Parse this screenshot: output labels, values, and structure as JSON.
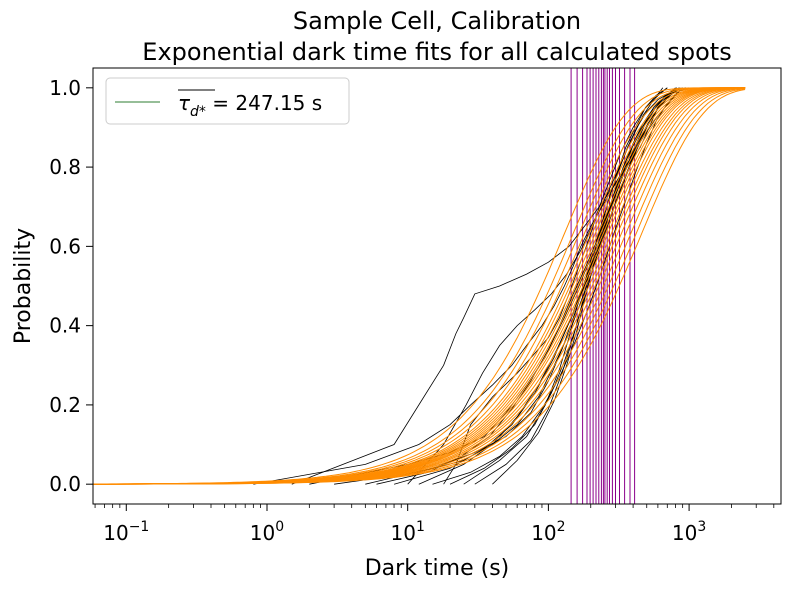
{
  "chart_data": {
    "type": "line",
    "title": "Sample Cell, Calibration",
    "subtitle": "Exponential dark time fits for all calculated spots",
    "xlabel": "Dark time (s)",
    "ylabel": "Probability",
    "x_scale": "log",
    "xlim": [
      0.058,
      4500
    ],
    "ylim": [
      -0.05,
      1.05
    ],
    "x_ticks": [
      {
        "value": 0.1,
        "base": "10",
        "exp": "−1"
      },
      {
        "value": 1,
        "base": "10",
        "exp": "0"
      },
      {
        "value": 10,
        "base": "10",
        "exp": "1"
      },
      {
        "value": 100,
        "base": "10",
        "exp": "2"
      },
      {
        "value": 1000,
        "base": "10",
        "exp": "3"
      }
    ],
    "y_ticks": [
      "0.0",
      "0.2",
      "0.4",
      "0.6",
      "0.8",
      "1.0"
    ],
    "grid": false,
    "legend": {
      "placement": "top-left",
      "label_prefix": "τ",
      "label_subscript": "d*",
      "label_suffix": " = 247.15 s",
      "color": "#2e7d32"
    },
    "colors": {
      "empirical": "#000000",
      "fit": "#ff8c00",
      "tau_lines": "#8b008b"
    },
    "tau_d_values": [
      145,
      160,
      175,
      188,
      198,
      208,
      218,
      228,
      238,
      246,
      252,
      262,
      272,
      285,
      300,
      320,
      348,
      380,
      410
    ],
    "fit_taus": [
      130,
      150,
      165,
      180,
      195,
      205,
      215,
      225,
      235,
      245,
      255,
      265,
      280,
      295,
      310,
      330,
      355,
      385,
      420,
      460
    ],
    "empirical_series": [
      {
        "x": [
          0.8,
          5,
          12,
          20,
          28,
          40,
          55,
          70,
          90,
          110,
          130,
          150,
          170,
          200,
          240,
          290,
          360,
          450,
          600,
          800
        ],
        "y": [
          0,
          0.05,
          0.1,
          0.15,
          0.2,
          0.25,
          0.3,
          0.35,
          0.4,
          0.45,
          0.5,
          0.55,
          0.6,
          0.65,
          0.7,
          0.75,
          0.8,
          0.85,
          0.95,
          1.0
        ]
      },
      {
        "x": [
          1.5,
          8,
          18,
          22,
          25,
          30,
          45,
          70,
          100,
          140,
          180,
          230,
          300,
          380,
          480,
          600,
          750,
          900
        ],
        "y": [
          0,
          0.1,
          0.3,
          0.38,
          0.42,
          0.48,
          0.5,
          0.53,
          0.56,
          0.6,
          0.65,
          0.7,
          0.76,
          0.82,
          0.88,
          0.93,
          0.97,
          1.0
        ]
      },
      {
        "x": [
          2,
          10,
          20,
          35,
          50,
          70,
          95,
          120,
          150,
          185,
          225,
          270,
          330,
          400,
          480,
          580,
          700,
          900
        ],
        "y": [
          0,
          0.05,
          0.08,
          0.12,
          0.18,
          0.25,
          0.32,
          0.4,
          0.48,
          0.55,
          0.62,
          0.7,
          0.77,
          0.83,
          0.89,
          0.94,
          0.98,
          1.0
        ]
      },
      {
        "x": [
          3,
          12,
          25,
          40,
          60,
          85,
          110,
          140,
          170,
          205,
          245,
          295,
          350,
          420,
          500,
          600,
          720,
          850
        ],
        "y": [
          0,
          0.03,
          0.06,
          0.1,
          0.15,
          0.22,
          0.3,
          0.38,
          0.46,
          0.54,
          0.62,
          0.7,
          0.77,
          0.84,
          0.9,
          0.95,
          0.98,
          1.0
        ]
      },
      {
        "x": [
          5,
          15,
          30,
          50,
          75,
          100,
          125,
          150,
          180,
          215,
          250,
          300,
          360,
          430,
          520,
          640,
          800
        ],
        "y": [
          0,
          0.04,
          0.08,
          0.12,
          0.18,
          0.26,
          0.34,
          0.42,
          0.5,
          0.58,
          0.66,
          0.74,
          0.82,
          0.88,
          0.93,
          0.97,
          1.0
        ]
      },
      {
        "x": [
          18,
          22,
          28,
          40,
          60,
          80,
          100,
          120,
          140,
          165,
          195,
          230,
          275,
          330,
          400,
          490,
          600,
          700
        ],
        "y": [
          0,
          0.05,
          0.15,
          0.22,
          0.28,
          0.33,
          0.37,
          0.42,
          0.48,
          0.55,
          0.62,
          0.7,
          0.77,
          0.84,
          0.9,
          0.95,
          0.98,
          1.0
        ]
      },
      {
        "x": [
          20,
          35,
          55,
          80,
          105,
          130,
          155,
          180,
          210,
          245,
          285,
          335,
          395,
          470,
          560,
          680,
          850
        ],
        "y": [
          0,
          0.04,
          0.09,
          0.15,
          0.23,
          0.31,
          0.39,
          0.47,
          0.55,
          0.63,
          0.71,
          0.78,
          0.85,
          0.9,
          0.95,
          0.98,
          1.0
        ]
      },
      {
        "x": [
          25,
          45,
          70,
          95,
          120,
          140,
          160,
          185,
          210,
          240,
          275,
          315,
          365,
          425,
          500,
          600,
          750,
          950
        ],
        "y": [
          0,
          0.06,
          0.12,
          0.2,
          0.29,
          0.37,
          0.45,
          0.52,
          0.59,
          0.66,
          0.73,
          0.79,
          0.85,
          0.9,
          0.94,
          0.97,
          0.99,
          1.0
        ]
      },
      {
        "x": [
          30,
          50,
          75,
          100,
          125,
          150,
          175,
          200,
          230,
          265,
          305,
          355,
          415,
          490,
          580,
          700
        ],
        "y": [
          0,
          0.05,
          0.11,
          0.19,
          0.28,
          0.37,
          0.46,
          0.55,
          0.63,
          0.71,
          0.78,
          0.85,
          0.9,
          0.95,
          0.98,
          1.0
        ]
      },
      {
        "x": [
          40,
          60,
          85,
          110,
          135,
          160,
          185,
          215,
          250,
          290,
          340,
          400,
          470,
          560,
          680,
          820
        ],
        "y": [
          0,
          0.06,
          0.13,
          0.21,
          0.3,
          0.39,
          0.48,
          0.57,
          0.65,
          0.73,
          0.8,
          0.86,
          0.91,
          0.95,
          0.98,
          1.0
        ]
      },
      {
        "x": [
          10,
          18,
          26,
          34,
          45,
          60,
          80,
          105,
          135,
          170,
          210,
          260,
          320,
          390,
          470,
          560,
          650
        ],
        "y": [
          0,
          0.1,
          0.2,
          0.28,
          0.35,
          0.4,
          0.44,
          0.48,
          0.53,
          0.59,
          0.66,
          0.73,
          0.8,
          0.87,
          0.93,
          0.97,
          1.0
        ]
      },
      {
        "x": [
          6,
          14,
          24,
          38,
          55,
          75,
          100,
          130,
          165,
          205,
          250,
          300,
          360,
          430,
          510,
          610,
          730,
          880
        ],
        "y": [
          0,
          0.03,
          0.07,
          0.12,
          0.19,
          0.26,
          0.34,
          0.42,
          0.5,
          0.58,
          0.66,
          0.73,
          0.8,
          0.86,
          0.91,
          0.95,
          0.98,
          1.0
        ]
      },
      {
        "x": [
          8,
          20,
          35,
          55,
          80,
          110,
          145,
          185,
          230,
          280,
          340,
          410,
          490,
          580,
          690,
          820
        ],
        "y": [
          0,
          0.04,
          0.09,
          0.15,
          0.23,
          0.32,
          0.42,
          0.52,
          0.61,
          0.7,
          0.78,
          0.85,
          0.91,
          0.95,
          0.98,
          1.0
        ]
      },
      {
        "x": [
          12,
          25,
          40,
          60,
          85,
          115,
          150,
          190,
          235,
          285,
          345,
          415,
          500,
          600,
          720,
          860
        ],
        "y": [
          0,
          0.05,
          0.1,
          0.17,
          0.25,
          0.34,
          0.43,
          0.52,
          0.61,
          0.69,
          0.77,
          0.84,
          0.9,
          0.95,
          0.98,
          1.0
        ]
      },
      {
        "x": [
          15,
          28,
          45,
          65,
          90,
          120,
          155,
          195,
          240,
          290,
          350,
          420,
          500,
          590,
          700,
          830,
          1000
        ],
        "y": [
          0,
          0.03,
          0.07,
          0.12,
          0.19,
          0.27,
          0.36,
          0.45,
          0.54,
          0.63,
          0.71,
          0.79,
          0.86,
          0.92,
          0.96,
          0.99,
          1.0
        ]
      }
    ]
  }
}
